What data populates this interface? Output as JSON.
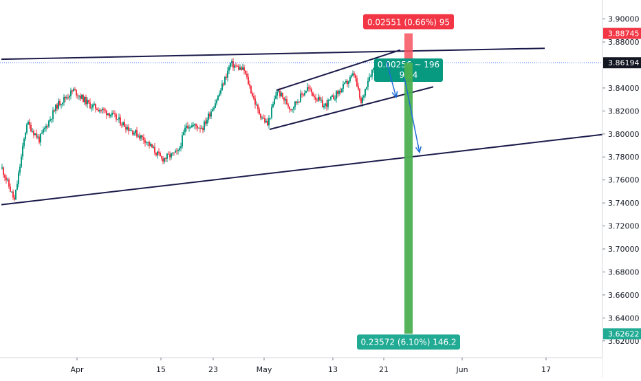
{
  "chart_data": {
    "type": "candlestick",
    "title": "",
    "xlabel": "",
    "ylabel": "",
    "ylim": [
      3.6055,
      3.9165
    ],
    "y_ticks": [
      "3.90000",
      "3.88000",
      "3.84000",
      "3.82000",
      "3.80000",
      "3.78000",
      "3.76000",
      "3.74000",
      "3.72000",
      "3.70000",
      "3.68000",
      "3.66000",
      "3.64000",
      "3.62000"
    ],
    "x_ticks": [
      {
        "label": "Apr",
        "bar": 55
      },
      {
        "label": "15",
        "bar": 116
      },
      {
        "label": "23",
        "bar": 154
      },
      {
        "label": "May",
        "bar": 191
      },
      {
        "label": "13",
        "bar": 241
      },
      {
        "label": "21",
        "bar": 278
      },
      {
        "label": "Jun",
        "bar": 335
      },
      {
        "label": "17",
        "bar": 396
      }
    ],
    "anchors": [
      {
        "bar": 0,
        "price": 3.77
      },
      {
        "bar": 9,
        "price": 3.742
      },
      {
        "bar": 18,
        "price": 3.81
      },
      {
        "bar": 27,
        "price": 3.795
      },
      {
        "bar": 40,
        "price": 3.825
      },
      {
        "bar": 52,
        "price": 3.838
      },
      {
        "bar": 64,
        "price": 3.825
      },
      {
        "bar": 78,
        "price": 3.818
      },
      {
        "bar": 92,
        "price": 3.805
      },
      {
        "bar": 104,
        "price": 3.795
      },
      {
        "bar": 116,
        "price": 3.778
      },
      {
        "bar": 128,
        "price": 3.784
      },
      {
        "bar": 134,
        "price": 3.808
      },
      {
        "bar": 146,
        "price": 3.806
      },
      {
        "bar": 158,
        "price": 3.835
      },
      {
        "bar": 166,
        "price": 3.861
      },
      {
        "bar": 176,
        "price": 3.855
      },
      {
        "bar": 186,
        "price": 3.82
      },
      {
        "bar": 193,
        "price": 3.808
      },
      {
        "bar": 200,
        "price": 3.838
      },
      {
        "bar": 210,
        "price": 3.822
      },
      {
        "bar": 222,
        "price": 3.84
      },
      {
        "bar": 234,
        "price": 3.824
      },
      {
        "bar": 246,
        "price": 3.838
      },
      {
        "bar": 256,
        "price": 3.852
      },
      {
        "bar": 261,
        "price": 3.826
      },
      {
        "bar": 266,
        "price": 3.848
      },
      {
        "bar": 272,
        "price": 3.862
      }
    ],
    "trendlines": [
      {
        "name": "upper-channel-line",
        "from": {
          "bar": 0,
          "price": 3.865
        },
        "to": {
          "bar": 395,
          "price": 3.8745
        }
      },
      {
        "name": "lower-channel-line",
        "from": {
          "bar": 0,
          "price": 3.7385
        },
        "to": {
          "bar": 437,
          "price": 3.7995
        }
      },
      {
        "name": "wedge-upper-line",
        "from": {
          "bar": 200,
          "price": 3.838
        },
        "to": {
          "bar": 290,
          "price": 3.873
        }
      },
      {
        "name": "wedge-lower-line",
        "from": {
          "bar": 195,
          "price": 3.804
        },
        "to": {
          "bar": 314,
          "price": 3.841
        }
      }
    ],
    "projection_arrows": [
      {
        "name": "arrow-short",
        "from": {
          "bar": 280,
          "price": 3.863
        },
        "to": {
          "bar": 287,
          "price": 3.832
        }
      },
      {
        "name": "arrow-long",
        "from": {
          "bar": 293,
          "price": 3.849
        },
        "to": {
          "bar": 304,
          "price": 3.784
        }
      }
    ],
    "measurements": [
      {
        "name": "measure-up",
        "bar": 296,
        "from_price": 3.8619,
        "to_price": 3.8875,
        "color": "#f23645",
        "label": "0.02551 (0.66%) 95"
      },
      {
        "name": "measure-small",
        "bar": 296,
        "from_price": 3.8619,
        "to_price": 3.8645,
        "color": "#089981",
        "label_line1": "0.00256 ~ 196",
        "label_line2": "9.24"
      },
      {
        "name": "measure-down",
        "bar": 296,
        "from_price": 3.8619,
        "to_price": 3.6262,
        "color": "#22ab94",
        "label": "0.23572 (6.10%) 146.2"
      }
    ],
    "price_badges": [
      {
        "name": "badge-red",
        "label": "3.88745",
        "price": 3.88745,
        "color": "#f23645"
      },
      {
        "name": "badge-current",
        "label": "3.86194",
        "price": 3.86194,
        "color": "#131722"
      },
      {
        "name": "badge-green",
        "label": "3.62622",
        "price": 3.62622,
        "color": "#22ab94"
      }
    ],
    "last_price": 3.86194,
    "colors": {
      "up": "#089981",
      "down": "#f23645",
      "trendline": "#1a1a4a",
      "arrow": "#1e6bd6",
      "current_price_line": "#2962ff",
      "measure_band": "#4caf50",
      "measure_band_red": "#f7525f"
    }
  }
}
